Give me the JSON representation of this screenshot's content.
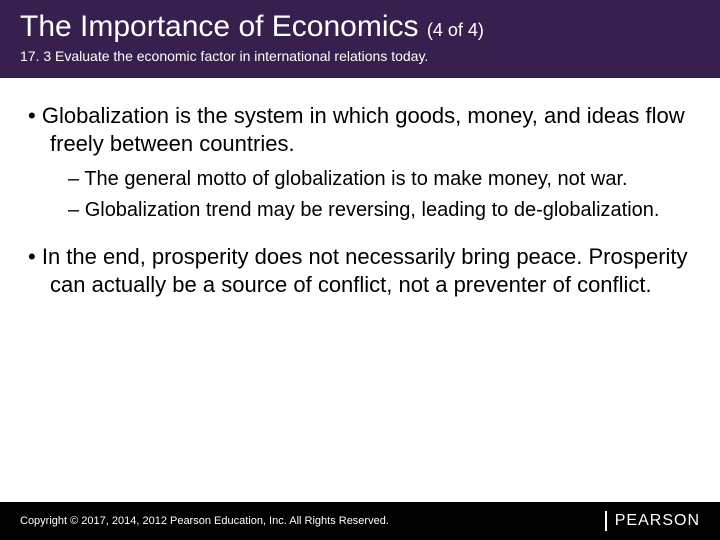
{
  "header": {
    "title_main": "The Importance of Economics",
    "title_count": "(4 of 4)",
    "subtitle": "17. 3 Evaluate the economic factor in international relations today.",
    "background_color": "#37204d",
    "title_color": "#ffffff",
    "subtitle_color": "#ffffff",
    "title_fontsize": 30,
    "subtitle_fontsize": 14
  },
  "content": {
    "text_color": "#000000",
    "main_fontsize": 22,
    "sub_fontsize": 20,
    "bullets": [
      {
        "text": "Globalization is the system in which goods, money, and ideas flow freely between countries.",
        "sub": [
          "The general motto of globalization is to make money, not war.",
          "Globalization trend may be reversing, leading to de-globalization."
        ]
      },
      {
        "text": "In the end, prosperity does not necessarily bring peace.  Prosperity can actually be a source of conflict, not a preventer of conflict.",
        "sub": []
      }
    ]
  },
  "footer": {
    "background_color": "#000000",
    "text_color": "#ffffff",
    "copyright": "Copyright © 2017, 2014, 2012 Pearson Education, Inc. All Rights Reserved.",
    "logo_text": "PEARSON",
    "copyright_fontsize": 11,
    "logo_fontsize": 16
  }
}
